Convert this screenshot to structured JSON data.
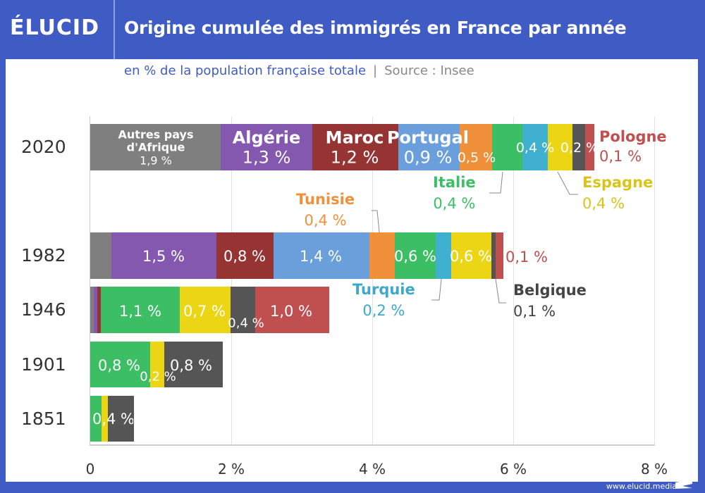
{
  "header": {
    "logo": "ÉLUCID",
    "title": "Origine cumulée des immigrés en France par année",
    "subtitle": "en % de la population française totale",
    "separator": "|",
    "source": "Source : Insee"
  },
  "footer": {
    "url": "www.elucid.media"
  },
  "colors": {
    "Autres pays d'Afrique": "#7f7f7f",
    "Algérie": "#8558b0",
    "Maroc": "#963434",
    "Portugal": "#6a9fdb",
    "Tunisie": "#f0903a",
    "Italie": "#3cbf64",
    "Turquie": "#3fb0cf",
    "Espagne": "#ecd515",
    "Belgique": "#555555",
    "Pologne": "#c05050"
  },
  "chart_data": {
    "type": "bar",
    "orientation": "horizontal",
    "stacked": true,
    "title": "Origine cumulée des immigrés en France par année",
    "subtitle": "en % de la population française totale",
    "xlim": [
      0,
      8
    ],
    "xticks": [
      "0",
      "2 %",
      "4 %",
      "6 %",
      "8 %"
    ],
    "grid": true,
    "categories": [
      "2020",
      "1982",
      "1946",
      "1901",
      "1851"
    ],
    "series": [
      {
        "name": "Autres pays d'Afrique",
        "values": [
          1.85,
          0.3,
          0.05,
          0,
          0
        ]
      },
      {
        "name": "Algérie",
        "values": [
          1.3,
          1.49,
          0.05,
          0,
          0
        ]
      },
      {
        "name": "Maroc",
        "values": [
          1.22,
          0.81,
          0.05,
          0,
          0
        ]
      },
      {
        "name": "Portugal",
        "values": [
          0.87,
          1.36,
          0,
          0,
          0
        ]
      },
      {
        "name": "Tunisie",
        "values": [
          0.46,
          0.36,
          0,
          0,
          0
        ]
      },
      {
        "name": "Italie",
        "values": [
          0.43,
          0.58,
          1.12,
          0.85,
          0.16
        ]
      },
      {
        "name": "Turquie",
        "values": [
          0.36,
          0.22,
          0,
          0,
          0
        ]
      },
      {
        "name": "Espagne",
        "values": [
          0.35,
          0.57,
          0.72,
          0.2,
          0.09
        ]
      },
      {
        "name": "Belgique",
        "values": [
          0.18,
          0.06,
          0.35,
          0.82,
          0.36
        ]
      },
      {
        "name": "Pologne",
        "values": [
          0.12,
          0.1,
          1.04,
          0,
          0
        ]
      }
    ],
    "labels": {
      "y2020": {
        "autres": [
          "Autres pays",
          "d'Afrique",
          "1,9 %"
        ],
        "algerie": [
          "Algérie",
          "1,3 %"
        ],
        "maroc": [
          "Maroc",
          "1,2 %"
        ],
        "portugal": [
          "Portugal",
          "0,9 %"
        ],
        "tunisie": "0,5 %",
        "turquie": "0,4 %",
        "belgique": "0,2 %"
      },
      "y1982": {
        "algerie": "1,5 %",
        "maroc": "0,8 %",
        "portugal": "1,4 %",
        "italie": "0,6 %",
        "espagne": "0,6 %",
        "pologne": "0,1 %"
      },
      "y1946": {
        "italie": "1,1 %",
        "espagne": "0,7 %",
        "belgique": "0,4 %",
        "pologne": "1,0 %"
      },
      "y1901": {
        "italie": "0,8 %",
        "espagne": "0,2 %",
        "belgique": "0,8 %"
      },
      "y1851": {
        "belgique": "0,4 %"
      }
    },
    "annotations": {
      "pologne": {
        "name": "Pologne",
        "value": "0,1 %"
      },
      "italie": {
        "name": "Italie",
        "value": "0,4 %"
      },
      "espagne": {
        "name": "Espagne",
        "value": "0,4 %"
      },
      "tunisie": {
        "name": "Tunisie",
        "value": "0,4 %"
      },
      "turquie": {
        "name": "Turquie",
        "value": "0,2 %"
      },
      "belgique": {
        "name": "Belgique",
        "value": "0,1 %"
      }
    }
  }
}
